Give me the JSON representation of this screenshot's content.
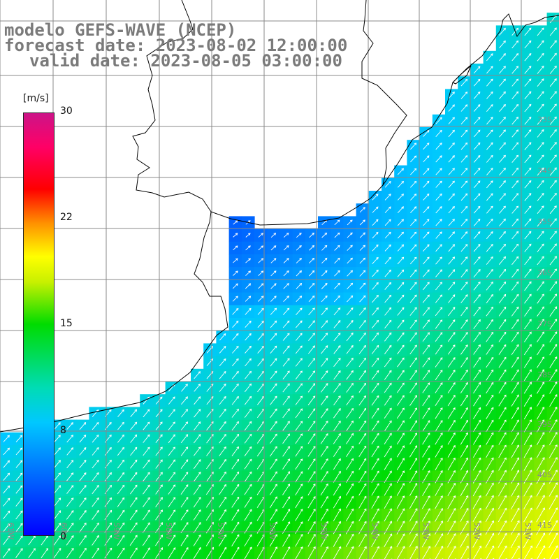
{
  "title": {
    "line1": "modelo GEFS-WAVE (NCEP)",
    "line2": "forecast date: 2023-08-02 12:00:00",
    "line3": "valid date: 2023-08-05 03:00:00"
  },
  "colorbar": {
    "unit": "[m/s]",
    "ticks": [
      "30",
      "22",
      "15",
      "8",
      "0"
    ],
    "tick_values": [
      30,
      22,
      15,
      8,
      0
    ],
    "range": [
      0,
      30
    ],
    "colors": [
      "#0000ff",
      "#00c8ff",
      "#00dcb4",
      "#00dc00",
      "#c8f000",
      "#ffff00",
      "#ff9000",
      "#ff0000",
      "#ff0066",
      "#cc1488"
    ]
  },
  "grid": {
    "lat_labels": [
      "33S",
      "34S",
      "35S",
      "36S",
      "37S",
      "38S",
      "39S",
      "40S",
      "41S"
    ],
    "lon_labels": [
      "61W",
      "60W",
      "59W",
      "58W",
      "57W",
      "56W",
      "55W",
      "54W",
      "53W",
      "52W",
      "51W"
    ]
  },
  "colors": {
    "land": "#ffffff",
    "coastline": "#000000",
    "gridline": "#888888",
    "arrow": "#ffffff",
    "label_text": "#7a7a7a"
  }
}
